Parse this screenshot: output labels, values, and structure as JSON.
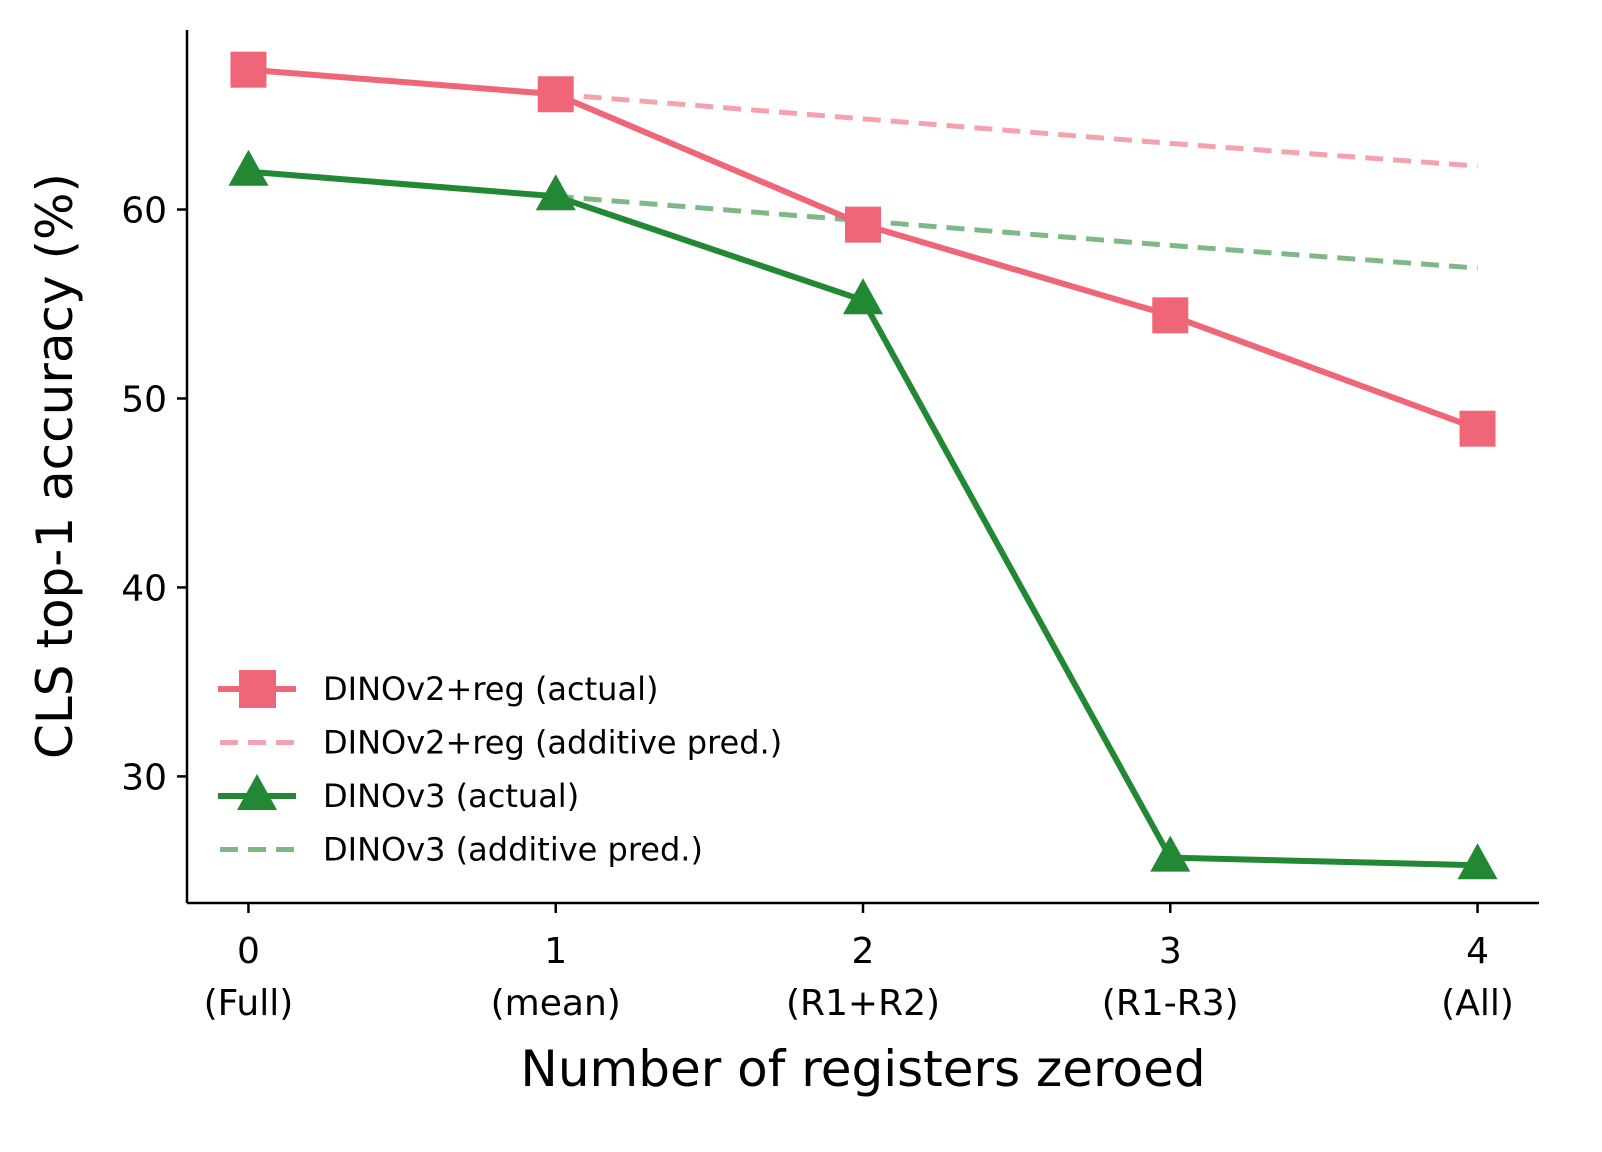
{
  "chart_data": {
    "type": "line",
    "title": "",
    "xlabel": "Number of registers zeroed",
    "ylabel": "CLS top-1 accuracy (%)",
    "x": [
      0,
      1,
      2,
      3,
      4
    ],
    "x_tick_labels": [
      {
        "value": "0",
        "sub": "(Full)"
      },
      {
        "value": "1",
        "sub": "(mean)"
      },
      {
        "value": "2",
        "sub": "(R1+R2)"
      },
      {
        "value": "3",
        "sub": "(R1-R3)"
      },
      {
        "value": "4",
        "sub": "(All)"
      }
    ],
    "y_ticks": [
      30,
      40,
      50,
      60
    ],
    "xlim": [
      -0.2,
      4.2
    ],
    "ylim": [
      23.3,
      69.5
    ],
    "grid": false,
    "legend_position": "lower-left",
    "series": [
      {
        "name": "DINOv2+reg (actual)",
        "x": [
          0,
          1,
          2,
          3,
          4
        ],
        "values": [
          67.4,
          66.1,
          59.2,
          54.4,
          48.4
        ],
        "color": "#EE6677",
        "style": "solid",
        "marker": "square"
      },
      {
        "name": "DINOv2+reg (additive pred.)",
        "x": [
          1,
          2,
          3,
          4
        ],
        "values": [
          66.1,
          64.8,
          63.5,
          62.3
        ],
        "color": "#F4A3AE",
        "style": "dashed",
        "marker": "none"
      },
      {
        "name": "DINOv3 (actual)",
        "x": [
          0,
          1,
          2,
          3,
          4
        ],
        "values": [
          62.0,
          60.7,
          55.2,
          25.7,
          25.3
        ],
        "color": "#228833",
        "style": "solid",
        "marker": "triangle"
      },
      {
        "name": "DINOv3 (additive pred.)",
        "x": [
          1,
          2,
          3,
          4
        ],
        "values": [
          60.7,
          59.4,
          58.1,
          56.9
        ],
        "color": "#7DB886",
        "style": "dashed",
        "marker": "none"
      }
    ]
  }
}
